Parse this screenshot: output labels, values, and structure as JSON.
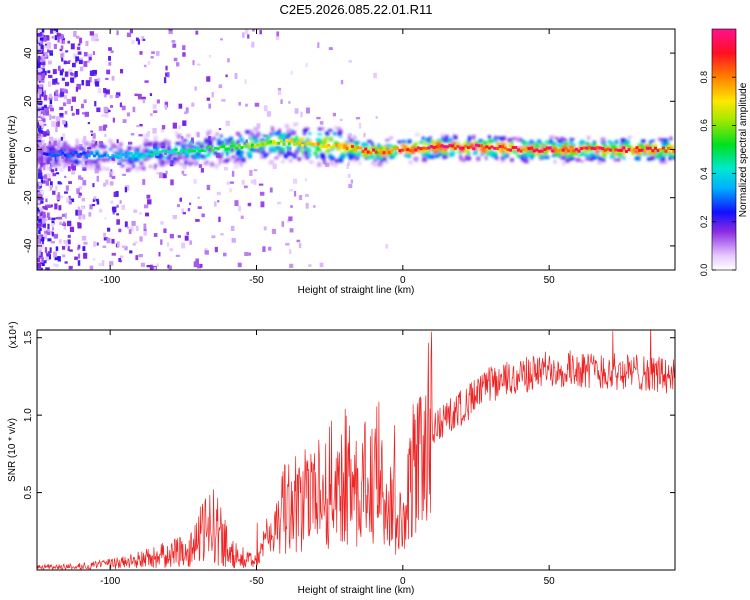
{
  "title": "C2E5.2026.085.22.01.R11",
  "chart_data": [
    {
      "type": "heatmap",
      "xlabel": "Height of straight line (km)",
      "ylabel": "Frequency (Hz)",
      "xlim": [
        -125,
        93
      ],
      "ylim": [
        -50,
        50
      ],
      "xticks": [
        -100,
        -50,
        0,
        50
      ],
      "yticks": [
        -40,
        -20,
        0,
        20,
        40
      ],
      "colorbar": {
        "label": "Normalized spectral amplitude",
        "range": [
          0,
          1
        ],
        "ticks": [
          0.0,
          0.2,
          0.4,
          0.6,
          0.8
        ]
      },
      "ridge": {
        "x": [
          -125,
          -110,
          -100,
          -90,
          -80,
          -70,
          -60,
          -50,
          -40,
          -30,
          -20,
          -10,
          0,
          10,
          20,
          30,
          40,
          50,
          60,
          70,
          80,
          90
        ],
        "freq": [
          -2,
          -2,
          -3,
          -2,
          -1,
          0,
          1,
          2,
          3,
          2,
          1,
          -1,
          0,
          1,
          1,
          1,
          0,
          0,
          0,
          0,
          0,
          0
        ],
        "amplitude": [
          0.25,
          0.3,
          0.35,
          0.4,
          0.45,
          0.5,
          0.55,
          0.6,
          0.65,
          0.75,
          0.8,
          0.85,
          0.9,
          0.92,
          0.95,
          0.95,
          0.9,
          0.9,
          0.9,
          0.9,
          0.88,
          0.85
        ]
      }
    },
    {
      "type": "line",
      "xlabel": "Height of straight line (km)",
      "ylabel": "SNR (10 * v/v)",
      "yscale_label": "(x10⁴)",
      "xlim": [
        -125,
        93
      ],
      "ylim": [
        0,
        1.55
      ],
      "xticks": [
        -100,
        -50,
        0,
        50
      ],
      "yticks": [
        0.5,
        1.0,
        1.5
      ],
      "color": "#ee2222",
      "series": [
        {
          "name": "SNR",
          "x": [
            -125,
            -115,
            -105,
            -95,
            -85,
            -75,
            -70,
            -65,
            -60,
            -55,
            -50,
            -45,
            -40,
            -35,
            -30,
            -25,
            -20,
            -15,
            -10,
            -5,
            0,
            5,
            10,
            20,
            30,
            40,
            50,
            60,
            70,
            80,
            93
          ],
          "values": [
            0.02,
            0.02,
            0.03,
            0.05,
            0.08,
            0.12,
            0.2,
            0.3,
            0.15,
            0.08,
            0.05,
            0.25,
            0.4,
            0.45,
            0.5,
            0.55,
            0.6,
            0.55,
            0.55,
            0.45,
            0.3,
            0.75,
            0.9,
            1.05,
            1.2,
            1.25,
            1.3,
            1.3,
            1.28,
            1.28,
            1.25
          ]
        }
      ]
    }
  ]
}
